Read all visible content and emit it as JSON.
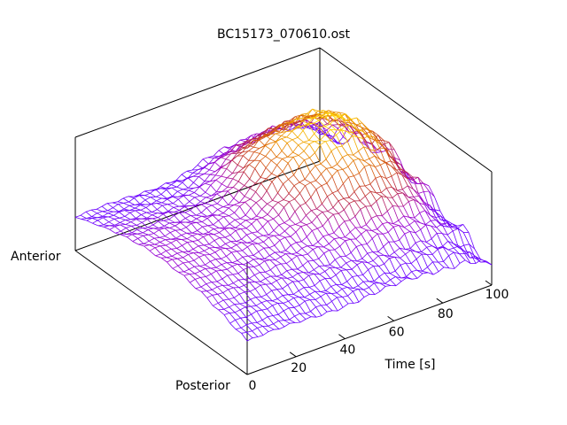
{
  "chart_data": {
    "type": "surface",
    "title": "BC15173_070610.ost",
    "xlabel": "Time [s]",
    "x_ticks": [
      "0",
      "20",
      "40",
      "60",
      "80",
      "100"
    ],
    "xlim": [
      0,
      100
    ],
    "ylim_labels": [
      "Anterior",
      "Posterior"
    ],
    "grid": false,
    "legend": "none",
    "surface_rows": 30,
    "surface_cols": 46,
    "colormap": [
      "#6a00ff",
      "#a000c8",
      "#c0302f",
      "#e07000",
      "#ffd000"
    ]
  }
}
